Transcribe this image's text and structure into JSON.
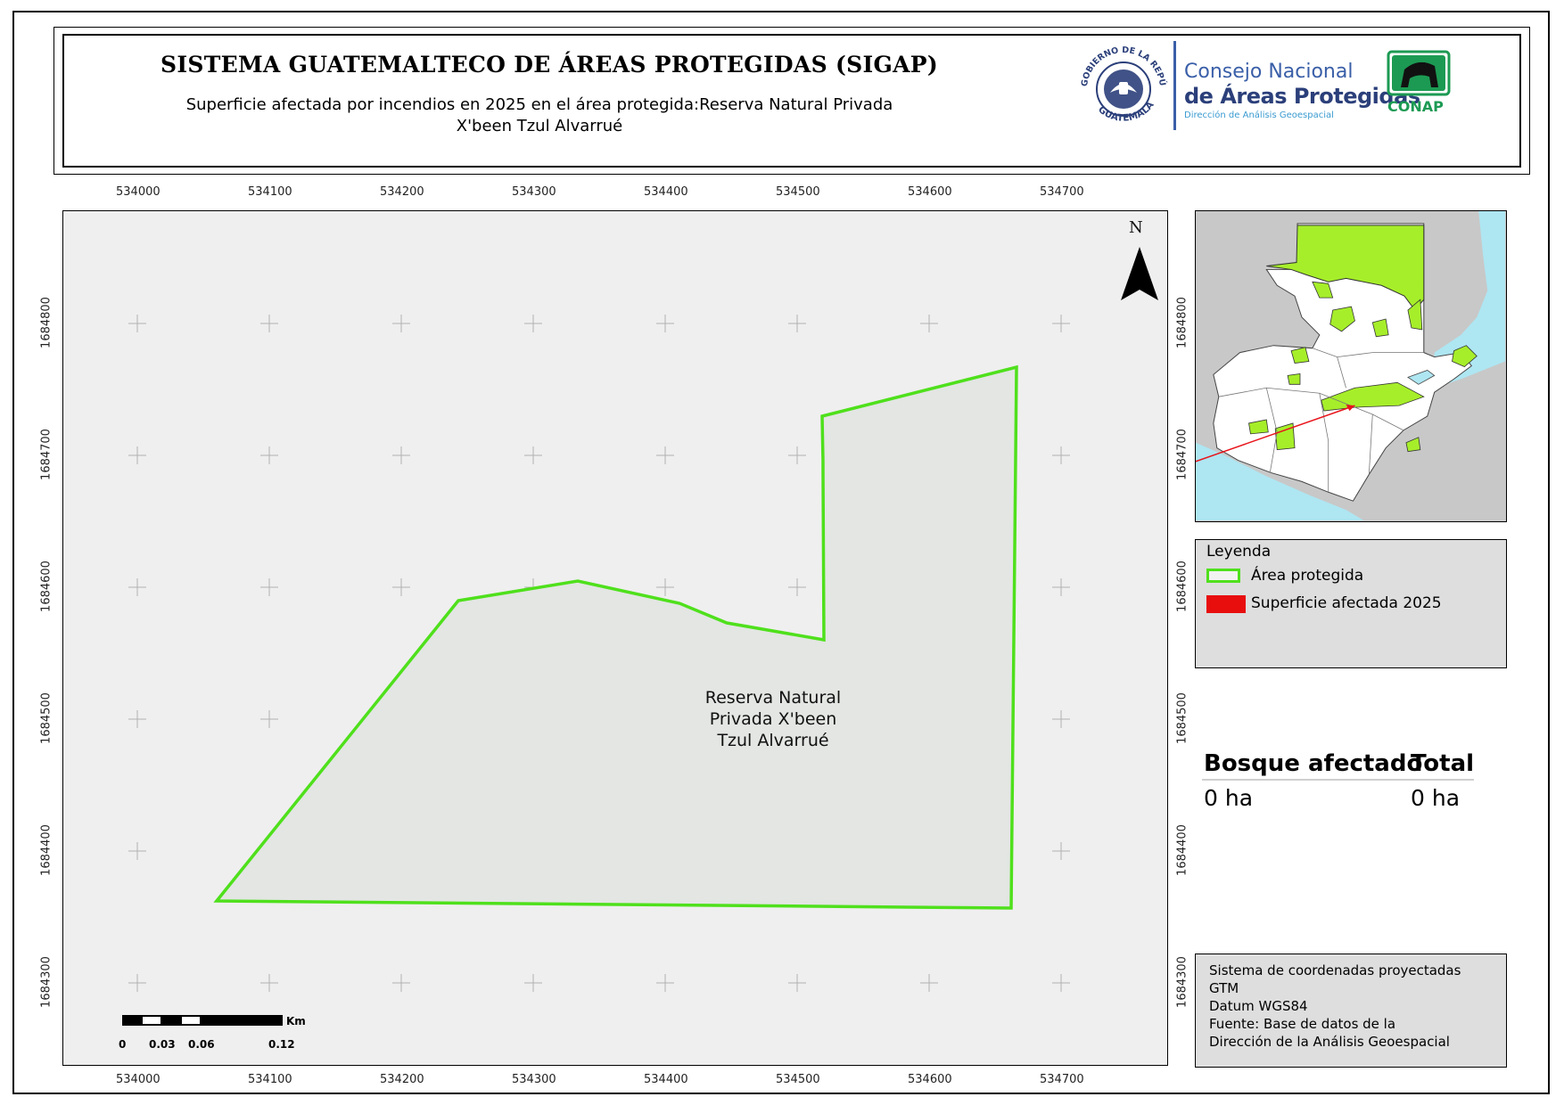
{
  "header": {
    "title": "SISTEMA GUATEMALTECO DE ÁREAS PROTEGIDAS  (SIGAP)",
    "subtitle": "Superficie afectada por incendios en 2025 en el área protegida:Reserva Natural Privada X'been Tzul Alvarrué",
    "logo_seal_text": "GOBIERNO DE LA REPÚBLICA · GUATEMALA",
    "logo_conap_line1": "Consejo Nacional",
    "logo_conap_line2": "de Áreas Protegidas",
    "logo_conap_line3": "Dirección de Análisis Geoespacial",
    "logo_conap_badge": "CONAP"
  },
  "map": {
    "x_ticks": [
      "534000",
      "534100",
      "534200",
      "534300",
      "534400",
      "534500",
      "534600",
      "534700"
    ],
    "y_ticks": [
      "1684800",
      "1684700",
      "1684600",
      "1684500",
      "1684400",
      "1684300"
    ],
    "north_label": "N",
    "area_label": "Reserva Natural Privada X'been Tzul Alvarrué",
    "area_label_lines": [
      "Reserva Natural",
      "Privada X'been",
      "Tzul Alvarrué"
    ],
    "scalebar": {
      "unit": "Km",
      "labels": [
        "0",
        "0.03",
        "0.06",
        "0.12"
      ]
    },
    "colors": {
      "background": "#efefef",
      "area_fill": "#e3e6e3",
      "area_outline": "#4fe01c",
      "grid": "#b0b0b0"
    }
  },
  "inset": {
    "y_ticks": [
      "1684800",
      "1684700",
      "1684600",
      "1684500",
      "1684400",
      "1684300"
    ],
    "colors": {
      "country": "#ffffff",
      "water": "#aee6f2",
      "neighbors": "#c8c8c8",
      "protected": "#a6ee2a",
      "pointer": "#e8141b"
    }
  },
  "legend": {
    "title": "Leyenda",
    "items": [
      {
        "label": "Área protegida",
        "color": "#4fe01c",
        "style": "outline"
      },
      {
        "label": "Superficie afectada 2025",
        "color": "#e80e0e",
        "style": "fill"
      }
    ]
  },
  "summary": {
    "headers": [
      "Bosque afectado",
      "Total"
    ],
    "values": [
      "0 ha",
      "0 ha"
    ]
  },
  "info": {
    "lines": [
      "Sistema de coordenadas proyectadas",
      "GTM",
      "Datum WGS84",
      "Fuente: Base de datos de la",
      "Dirección de la Análisis Geoespacial"
    ]
  }
}
